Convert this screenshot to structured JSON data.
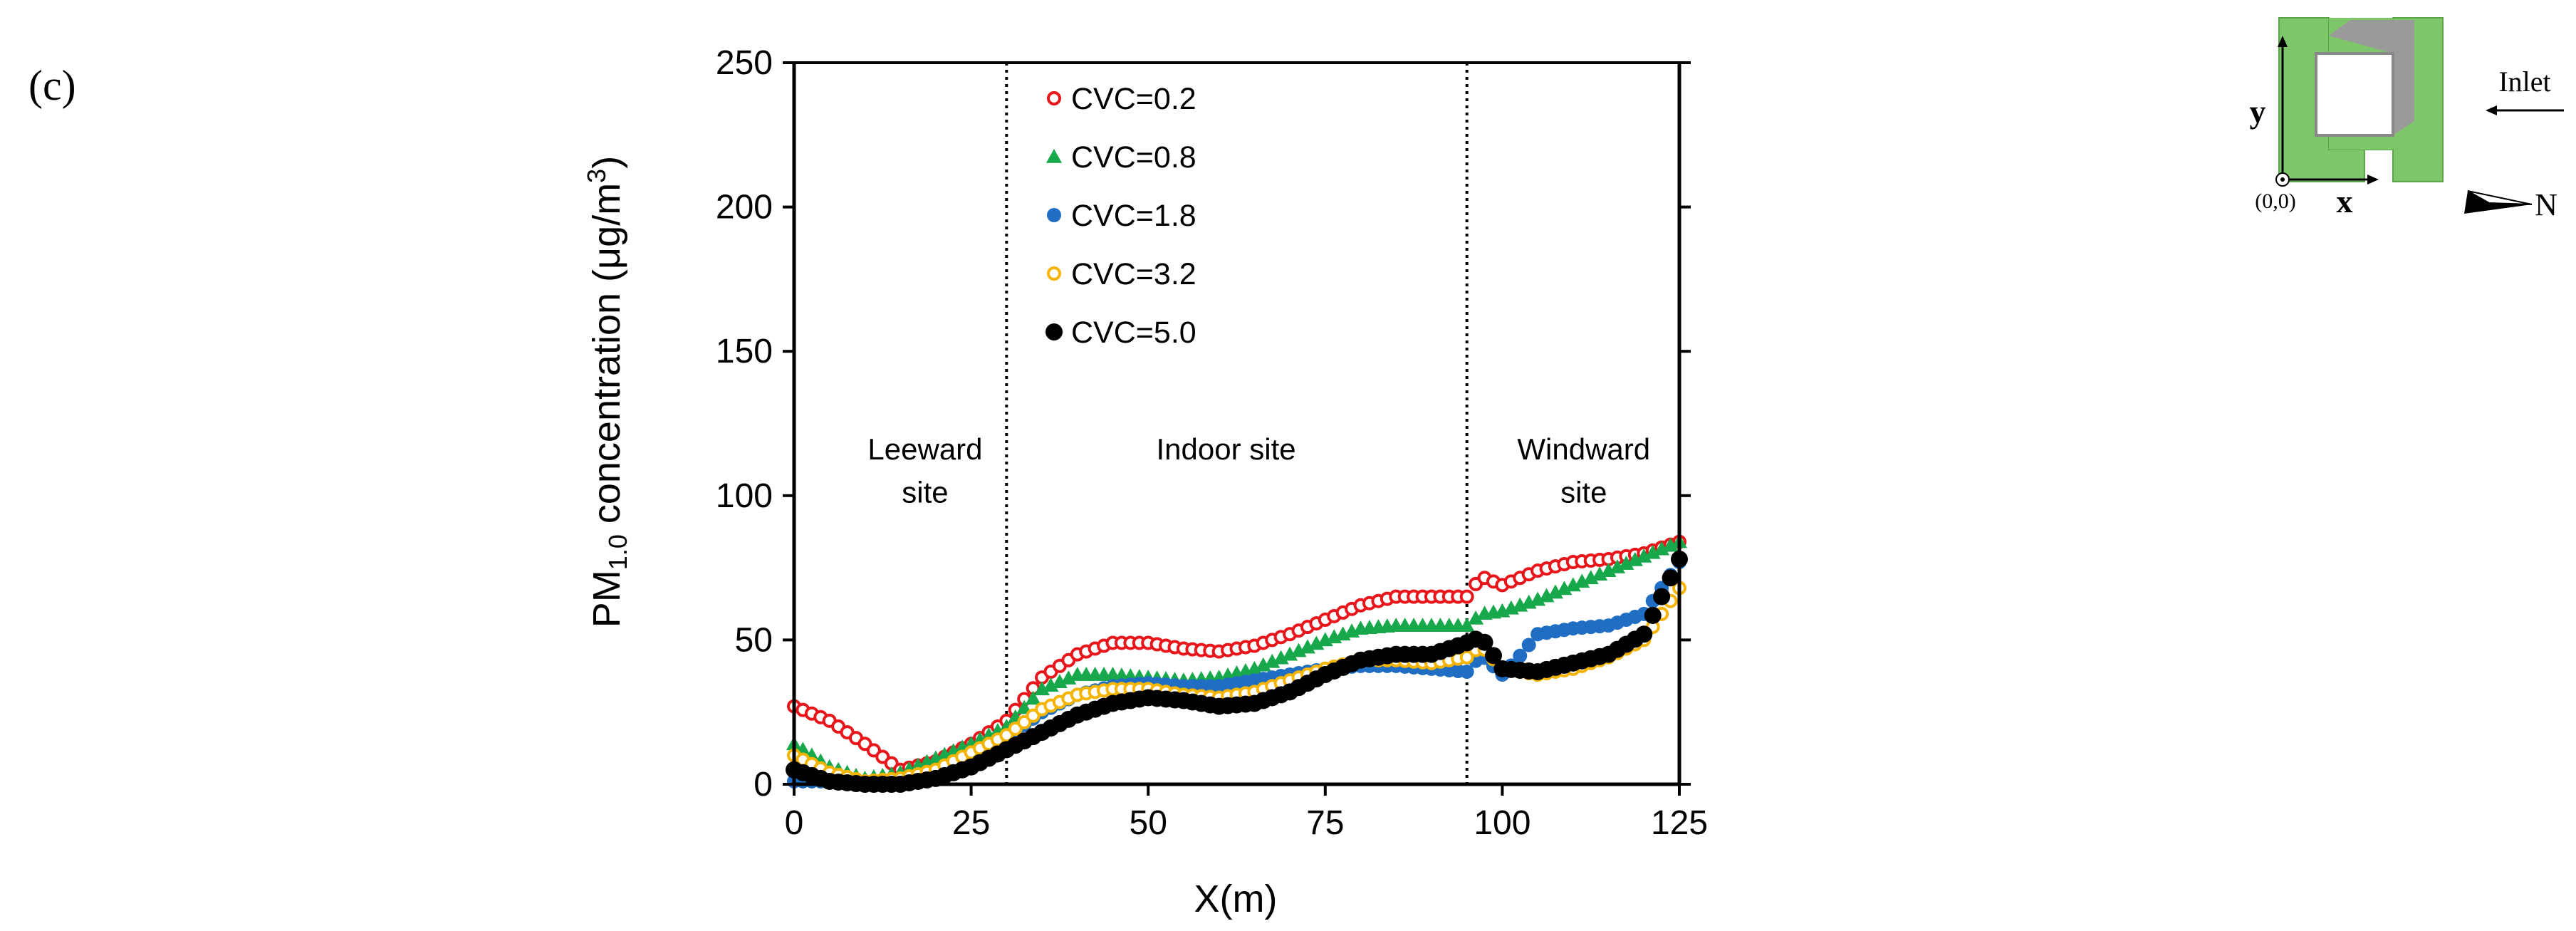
{
  "panel_label": "(c)",
  "chart_data": {
    "type": "scatter",
    "title": "",
    "xlabel": "X(m)",
    "ylabel_main": "PM",
    "ylabel_sub": "1.0",
    "ylabel_rest": " concentration (μg/m",
    "ylabel_sup": "3",
    "ylabel_end": ")",
    "xlim": [
      0,
      125
    ],
    "ylim": [
      0,
      250
    ],
    "xticks": [
      0,
      25,
      50,
      75,
      100,
      125
    ],
    "yticks": [
      0,
      50,
      100,
      150,
      200,
      250
    ],
    "grid": false,
    "legend_position": "top-center",
    "dividers": [
      30,
      95
    ],
    "regions": [
      {
        "lines": [
          "Leeward",
          "site"
        ],
        "x": 18.5,
        "y": [
          116,
          101
        ]
      },
      {
        "lines": [
          "Indoor site"
        ],
        "x": 61,
        "y": [
          116
        ]
      },
      {
        "lines": [
          "Windward",
          "site"
        ],
        "x": 111.5,
        "y": [
          116,
          101
        ]
      }
    ],
    "series": [
      {
        "name": "CVC=0.2",
        "color": "#e8161b",
        "marker": "open-circle",
        "x": [
          0,
          5,
          10,
          15,
          20,
          25,
          30,
          35,
          40,
          45,
          50,
          55,
          60,
          65,
          70,
          75,
          80,
          85,
          90,
          95,
          97,
          100,
          105,
          110,
          115,
          120,
          125
        ],
        "y": [
          27,
          22,
          14,
          5,
          8,
          14,
          22,
          37,
          45,
          49,
          49,
          47,
          46,
          48,
          52,
          57,
          62,
          65,
          65,
          65,
          72,
          69,
          74,
          77,
          78,
          80,
          84
        ]
      },
      {
        "name": "CVC=0.8",
        "color": "#16a84a",
        "marker": "triangle",
        "x": [
          0,
          5,
          10,
          15,
          20,
          25,
          30,
          35,
          40,
          45,
          50,
          55,
          60,
          65,
          70,
          75,
          80,
          85,
          90,
          95,
          97,
          100,
          105,
          110,
          115,
          120,
          125
        ],
        "y": [
          14,
          6,
          2,
          4,
          9,
          14,
          20,
          33,
          38,
          38,
          37,
          36,
          37,
          40,
          45,
          50,
          54,
          55,
          55,
          55,
          59,
          60,
          64,
          69,
          74,
          79,
          84
        ]
      },
      {
        "name": "CVC=1.8",
        "color": "#1f6ec4",
        "marker": "filled-circle",
        "x": [
          0,
          5,
          10,
          15,
          20,
          25,
          30,
          35,
          40,
          45,
          50,
          55,
          60,
          65,
          70,
          75,
          80,
          85,
          90,
          95,
          97,
          100,
          102,
          105,
          110,
          115,
          120,
          125
        ],
        "y": [
          1,
          1,
          1,
          2,
          5,
          9,
          16,
          25,
          31,
          34,
          35,
          34,
          34,
          36,
          38,
          40,
          41,
          41,
          40,
          39,
          45,
          38,
          43,
          52,
          54,
          55,
          59,
          77
        ]
      },
      {
        "name": "CVC=3.2",
        "color": "#f5b400",
        "marker": "open-circle",
        "x": [
          0,
          5,
          10,
          15,
          20,
          25,
          30,
          35,
          40,
          45,
          50,
          55,
          60,
          65,
          70,
          75,
          80,
          85,
          90,
          95,
          97,
          100,
          105,
          110,
          115,
          120,
          125
        ],
        "y": [
          10,
          4,
          1,
          2,
          5,
          11,
          17,
          26,
          31,
          33,
          33,
          31,
          30,
          32,
          36,
          40,
          43,
          43,
          42,
          44,
          48,
          40,
          38,
          40,
          44,
          50,
          68
        ]
      },
      {
        "name": "CVC=5.0",
        "color": "#000000",
        "marker": "filled-circle",
        "x": [
          0,
          5,
          10,
          15,
          20,
          25,
          30,
          35,
          40,
          45,
          50,
          55,
          60,
          65,
          70,
          75,
          80,
          85,
          90,
          95,
          97,
          100,
          105,
          110,
          115,
          120,
          125
        ],
        "y": [
          5,
          1,
          0,
          0,
          2,
          6,
          12,
          18,
          24,
          28,
          30,
          29,
          27,
          28,
          32,
          38,
          43,
          45,
          45,
          49,
          51,
          40,
          39,
          42,
          45,
          52,
          78
        ]
      }
    ]
  },
  "inset": {
    "y_label": "y",
    "x_label": "x",
    "origin_label": "(0,0)",
    "inlet_label": "Inlet",
    "north_label": "N",
    "wall_color": "#7ec66a"
  }
}
